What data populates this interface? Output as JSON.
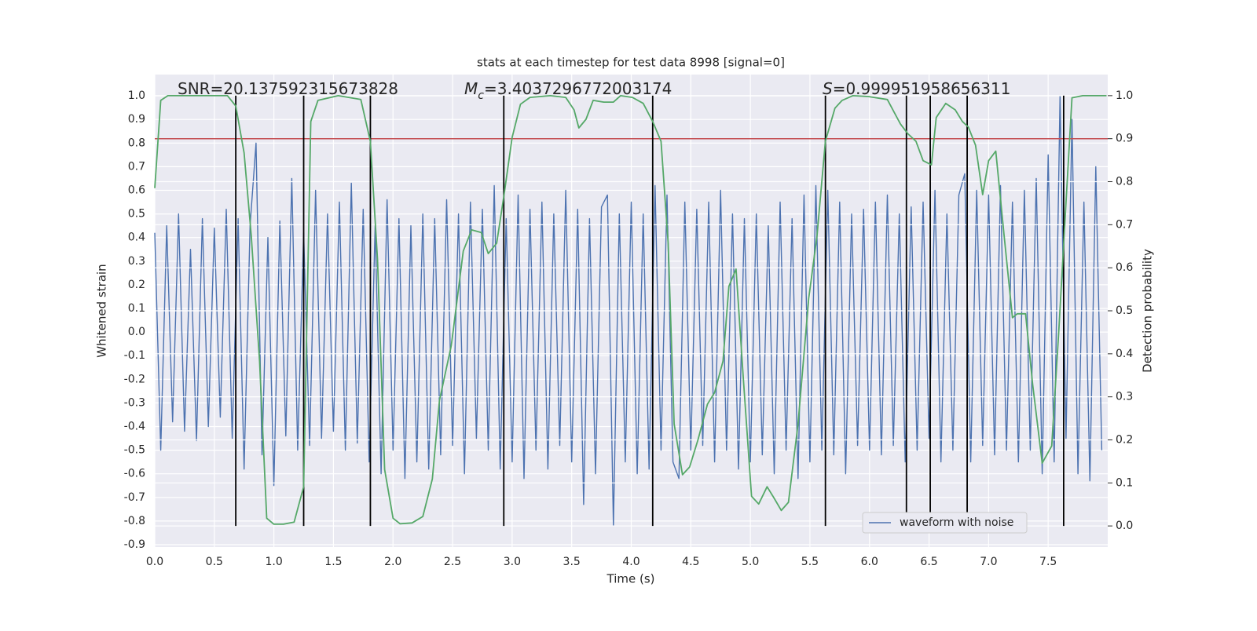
{
  "chart_data": {
    "type": "line",
    "title": "stats at each timestep for test data 8998 [signal=0]",
    "xlabel": "Time (s)",
    "ylabel": "Whitened strain",
    "y2label": "Detection probability",
    "annotations": [
      {
        "text": "SNR=20.137592315673828"
      },
      {
        "symbol": "M",
        "subscript": "c",
        "text": "=3.4037296772003174"
      },
      {
        "symbol": "S",
        "text": "=0.999951958656311"
      }
    ],
    "xlim": [
      0,
      8.0
    ],
    "ylim": [
      -0.91,
      1.09
    ],
    "y2lim": [
      -0.049,
      1.049
    ],
    "xticks": [
      {
        "value": 0,
        "label": "0.0"
      },
      0.5,
      {
        "value": 1,
        "label": "1.0"
      },
      1.5,
      {
        "value": 2,
        "label": "2.0"
      },
      2.5,
      {
        "value": 3,
        "label": "3.0"
      },
      3.5,
      {
        "value": 4,
        "label": "4.0"
      },
      4.5,
      {
        "value": 5,
        "label": "5.0"
      },
      5.5,
      {
        "value": 6,
        "label": "6.0"
      },
      6.5,
      {
        "value": 7,
        "label": "7.0"
      },
      7.5
    ],
    "yticks": [
      -0.9,
      -0.8,
      -0.7,
      -0.6,
      -0.5,
      -0.4,
      -0.3,
      -0.2,
      -0.1,
      {
        "value": 0,
        "label": "0.0"
      },
      0.1,
      0.2,
      0.3,
      0.4,
      0.5,
      0.6,
      0.7,
      0.8,
      0.9,
      {
        "value": 1,
        "label": "1.0"
      }
    ],
    "y2ticks": [
      {
        "value": 0,
        "label": "0.0"
      },
      0.1,
      0.2,
      0.3,
      0.4,
      0.5,
      0.6,
      0.7,
      0.8,
      0.9,
      {
        "value": 1,
        "label": "1.0"
      }
    ],
    "grid": true,
    "legend": "lower right",
    "series": [
      {
        "name": "waveform with noise",
        "color": "#4c72b0",
        "x": [
          0,
          0.05,
          0.1,
          0.15,
          0.2,
          0.25,
          0.3,
          0.35,
          0.4,
          0.45,
          0.5,
          0.55,
          0.6,
          0.65,
          0.7,
          0.75,
          0.8,
          0.85,
          0.9,
          0.95,
          1,
          1.05,
          1.1,
          1.15,
          1.2,
          1.25,
          1.3,
          1.35,
          1.4,
          1.45,
          1.5,
          1.55,
          1.6,
          1.65,
          1.7,
          1.75,
          1.8,
          1.85,
          1.9,
          1.95,
          2,
          2.05,
          2.1,
          2.15,
          2.2,
          2.25,
          2.3,
          2.35,
          2.4,
          2.45,
          2.5,
          2.55,
          2.6,
          2.65,
          2.7,
          2.75,
          2.8,
          2.85,
          2.9,
          2.95,
          3,
          3.05,
          3.1,
          3.15,
          3.2,
          3.25,
          3.3,
          3.35,
          3.4,
          3.45,
          3.5,
          3.55,
          3.6,
          3.65,
          3.7,
          3.75,
          3.8,
          3.85,
          3.9,
          3.95,
          4,
          4.05,
          4.1,
          4.15,
          4.2,
          4.25,
          4.3,
          4.35,
          4.4,
          4.45,
          4.5,
          4.55,
          4.6,
          4.65,
          4.7,
          4.75,
          4.8,
          4.85,
          4.9,
          4.95,
          5,
          5.05,
          5.1,
          5.15,
          5.2,
          5.25,
          5.3,
          5.35,
          5.4,
          5.45,
          5.5,
          5.55,
          5.6,
          5.65,
          5.7,
          5.75,
          5.8,
          5.85,
          5.9,
          5.95,
          6,
          6.05,
          6.1,
          6.15,
          6.2,
          6.25,
          6.3,
          6.35,
          6.4,
          6.45,
          6.5,
          6.55,
          6.6,
          6.65,
          6.7,
          6.75,
          6.8,
          6.85,
          6.9,
          6.95,
          7,
          7.05,
          7.1,
          7.15,
          7.2,
          7.25,
          7.3,
          7.35,
          7.4,
          7.45,
          7.5,
          7.55,
          7.6,
          7.65,
          7.7,
          7.75,
          7.8,
          7.85,
          7.9,
          7.95
        ],
        "values": [
          0.42,
          -0.5,
          0.45,
          -0.38,
          0.5,
          -0.42,
          0.35,
          -0.46,
          0.48,
          -0.4,
          0.44,
          -0.36,
          0.52,
          -0.45,
          0.48,
          -0.58,
          0.45,
          0.8,
          -0.52,
          0.4,
          -0.65,
          0.47,
          -0.44,
          0.65,
          -0.5,
          0.42,
          -0.48,
          0.6,
          -0.45,
          0.5,
          -0.42,
          0.55,
          -0.5,
          0.63,
          -0.47,
          0.52,
          -0.55,
          0.45,
          -0.6,
          0.56,
          -0.5,
          0.48,
          -0.62,
          0.45,
          -0.55,
          0.5,
          -0.58,
          0.48,
          -0.52,
          0.56,
          -0.48,
          0.5,
          -0.6,
          0.55,
          -0.45,
          0.52,
          -0.5,
          0.62,
          -0.58,
          0.48,
          -0.55,
          0.58,
          -0.62,
          0.52,
          -0.5,
          0.55,
          -0.58,
          0.5,
          -0.48,
          0.6,
          -0.55,
          0.52,
          -0.73,
          0.48,
          -0.6,
          0.53,
          0.58,
          -0.82,
          0.5,
          -0.55,
          0.55,
          -0.6,
          0.5,
          -0.58,
          0.62,
          -0.5,
          0.58,
          -0.55,
          -0.62,
          0.55,
          -0.5,
          0.52,
          -0.48,
          0.55,
          -0.55,
          0.6,
          -0.5,
          0.5,
          -0.58,
          0.48,
          -0.55,
          0.5,
          -0.52,
          0.45,
          -0.6,
          0.55,
          -0.5,
          0.48,
          -0.62,
          0.58,
          -0.55,
          0.62,
          -0.5,
          0.6,
          -0.52,
          0.55,
          -0.6,
          0.5,
          -0.48,
          0.52,
          -0.5,
          0.55,
          -0.52,
          0.58,
          -0.48,
          0.5,
          -0.55,
          0.53,
          -0.5,
          0.55,
          -0.45,
          0.6,
          -0.55,
          0.5,
          -0.5,
          0.58,
          0.67,
          -0.55,
          0.6,
          -0.48,
          0.58,
          -0.52,
          0.62,
          -0.5,
          0.55,
          -0.55,
          0.6,
          -0.5,
          0.65,
          -0.6,
          0.75,
          -0.55,
          1.0,
          -0.45,
          0.9,
          -0.6,
          0.55,
          -0.63,
          0.7,
          -0.5
        ]
      },
      {
        "color": "#55a868",
        "axis": "y2",
        "x": [
          0,
          0.05,
          0.11,
          0.61,
          0.68,
          0.75,
          0.81,
          0.88,
          0.94,
          1.0,
          1.08,
          1.17,
          1.25,
          1.31,
          1.37,
          1.54,
          1.73,
          1.81,
          1.87,
          1.93,
          2.0,
          2.06,
          2.16,
          2.25,
          2.33,
          2.39,
          2.49,
          2.59,
          2.66,
          2.74,
          2.8,
          2.87,
          2.93,
          3.0,
          3.07,
          3.15,
          3.32,
          3.45,
          3.52,
          3.56,
          3.62,
          3.68,
          3.77,
          3.85,
          3.91,
          4.01,
          4.1,
          4.18,
          4.25,
          4.31,
          4.36,
          4.43,
          4.49,
          4.56,
          4.64,
          4.7,
          4.77,
          4.82,
          4.88,
          4.94,
          5.01,
          5.07,
          5.14,
          5.2,
          5.26,
          5.32,
          5.4,
          5.49,
          5.56,
          5.63,
          5.71,
          5.77,
          5.86,
          5.99,
          6.15,
          6.26,
          6.32,
          6.39,
          6.45,
          6.52,
          6.56,
          6.64,
          6.72,
          6.78,
          6.83,
          6.89,
          6.95,
          7.0,
          7.06,
          7.13,
          7.2,
          7.24,
          7.31,
          7.37,
          7.45,
          7.53,
          7.59,
          7.65,
          7.7,
          7.79,
          7.99
        ],
        "values": [
          0.785,
          0.989,
          1.0,
          1.0,
          0.976,
          0.867,
          0.675,
          0.383,
          0.018,
          0.004,
          0.004,
          0.009,
          0.091,
          0.94,
          0.989,
          1.0,
          0.991,
          0.894,
          0.62,
          0.131,
          0.018,
          0.005,
          0.007,
          0.022,
          0.109,
          0.292,
          0.42,
          0.639,
          0.688,
          0.682,
          0.633,
          0.657,
          0.766,
          0.903,
          0.98,
          0.996,
          1.0,
          0.996,
          0.967,
          0.925,
          0.945,
          0.989,
          0.985,
          0.985,
          1.0,
          0.996,
          0.982,
          0.94,
          0.894,
          0.657,
          0.237,
          0.119,
          0.137,
          0.2,
          0.283,
          0.31,
          0.383,
          0.557,
          0.597,
          0.347,
          0.069,
          0.051,
          0.091,
          0.064,
          0.036,
          0.055,
          0.237,
          0.529,
          0.675,
          0.894,
          0.971,
          0.989,
          1.0,
          0.998,
          0.991,
          0.934,
          0.912,
          0.894,
          0.849,
          0.839,
          0.949,
          0.982,
          0.967,
          0.94,
          0.927,
          0.885,
          0.77,
          0.849,
          0.871,
          0.675,
          0.484,
          0.493,
          0.493,
          0.328,
          0.146,
          0.186,
          0.456,
          0.752,
          0.995,
          1.0,
          1.0
        ]
      }
    ],
    "threshold": {
      "value": 0.9,
      "axis": "y2",
      "color": "#c44e52"
    },
    "vlines": {
      "x": [
        0.68,
        1.25,
        1.81,
        2.93,
        4.18,
        5.63,
        6.31,
        6.51,
        6.82,
        7.63
      ],
      "range": [
        0,
        1
      ],
      "axis": "y2",
      "color": "#000000"
    }
  }
}
